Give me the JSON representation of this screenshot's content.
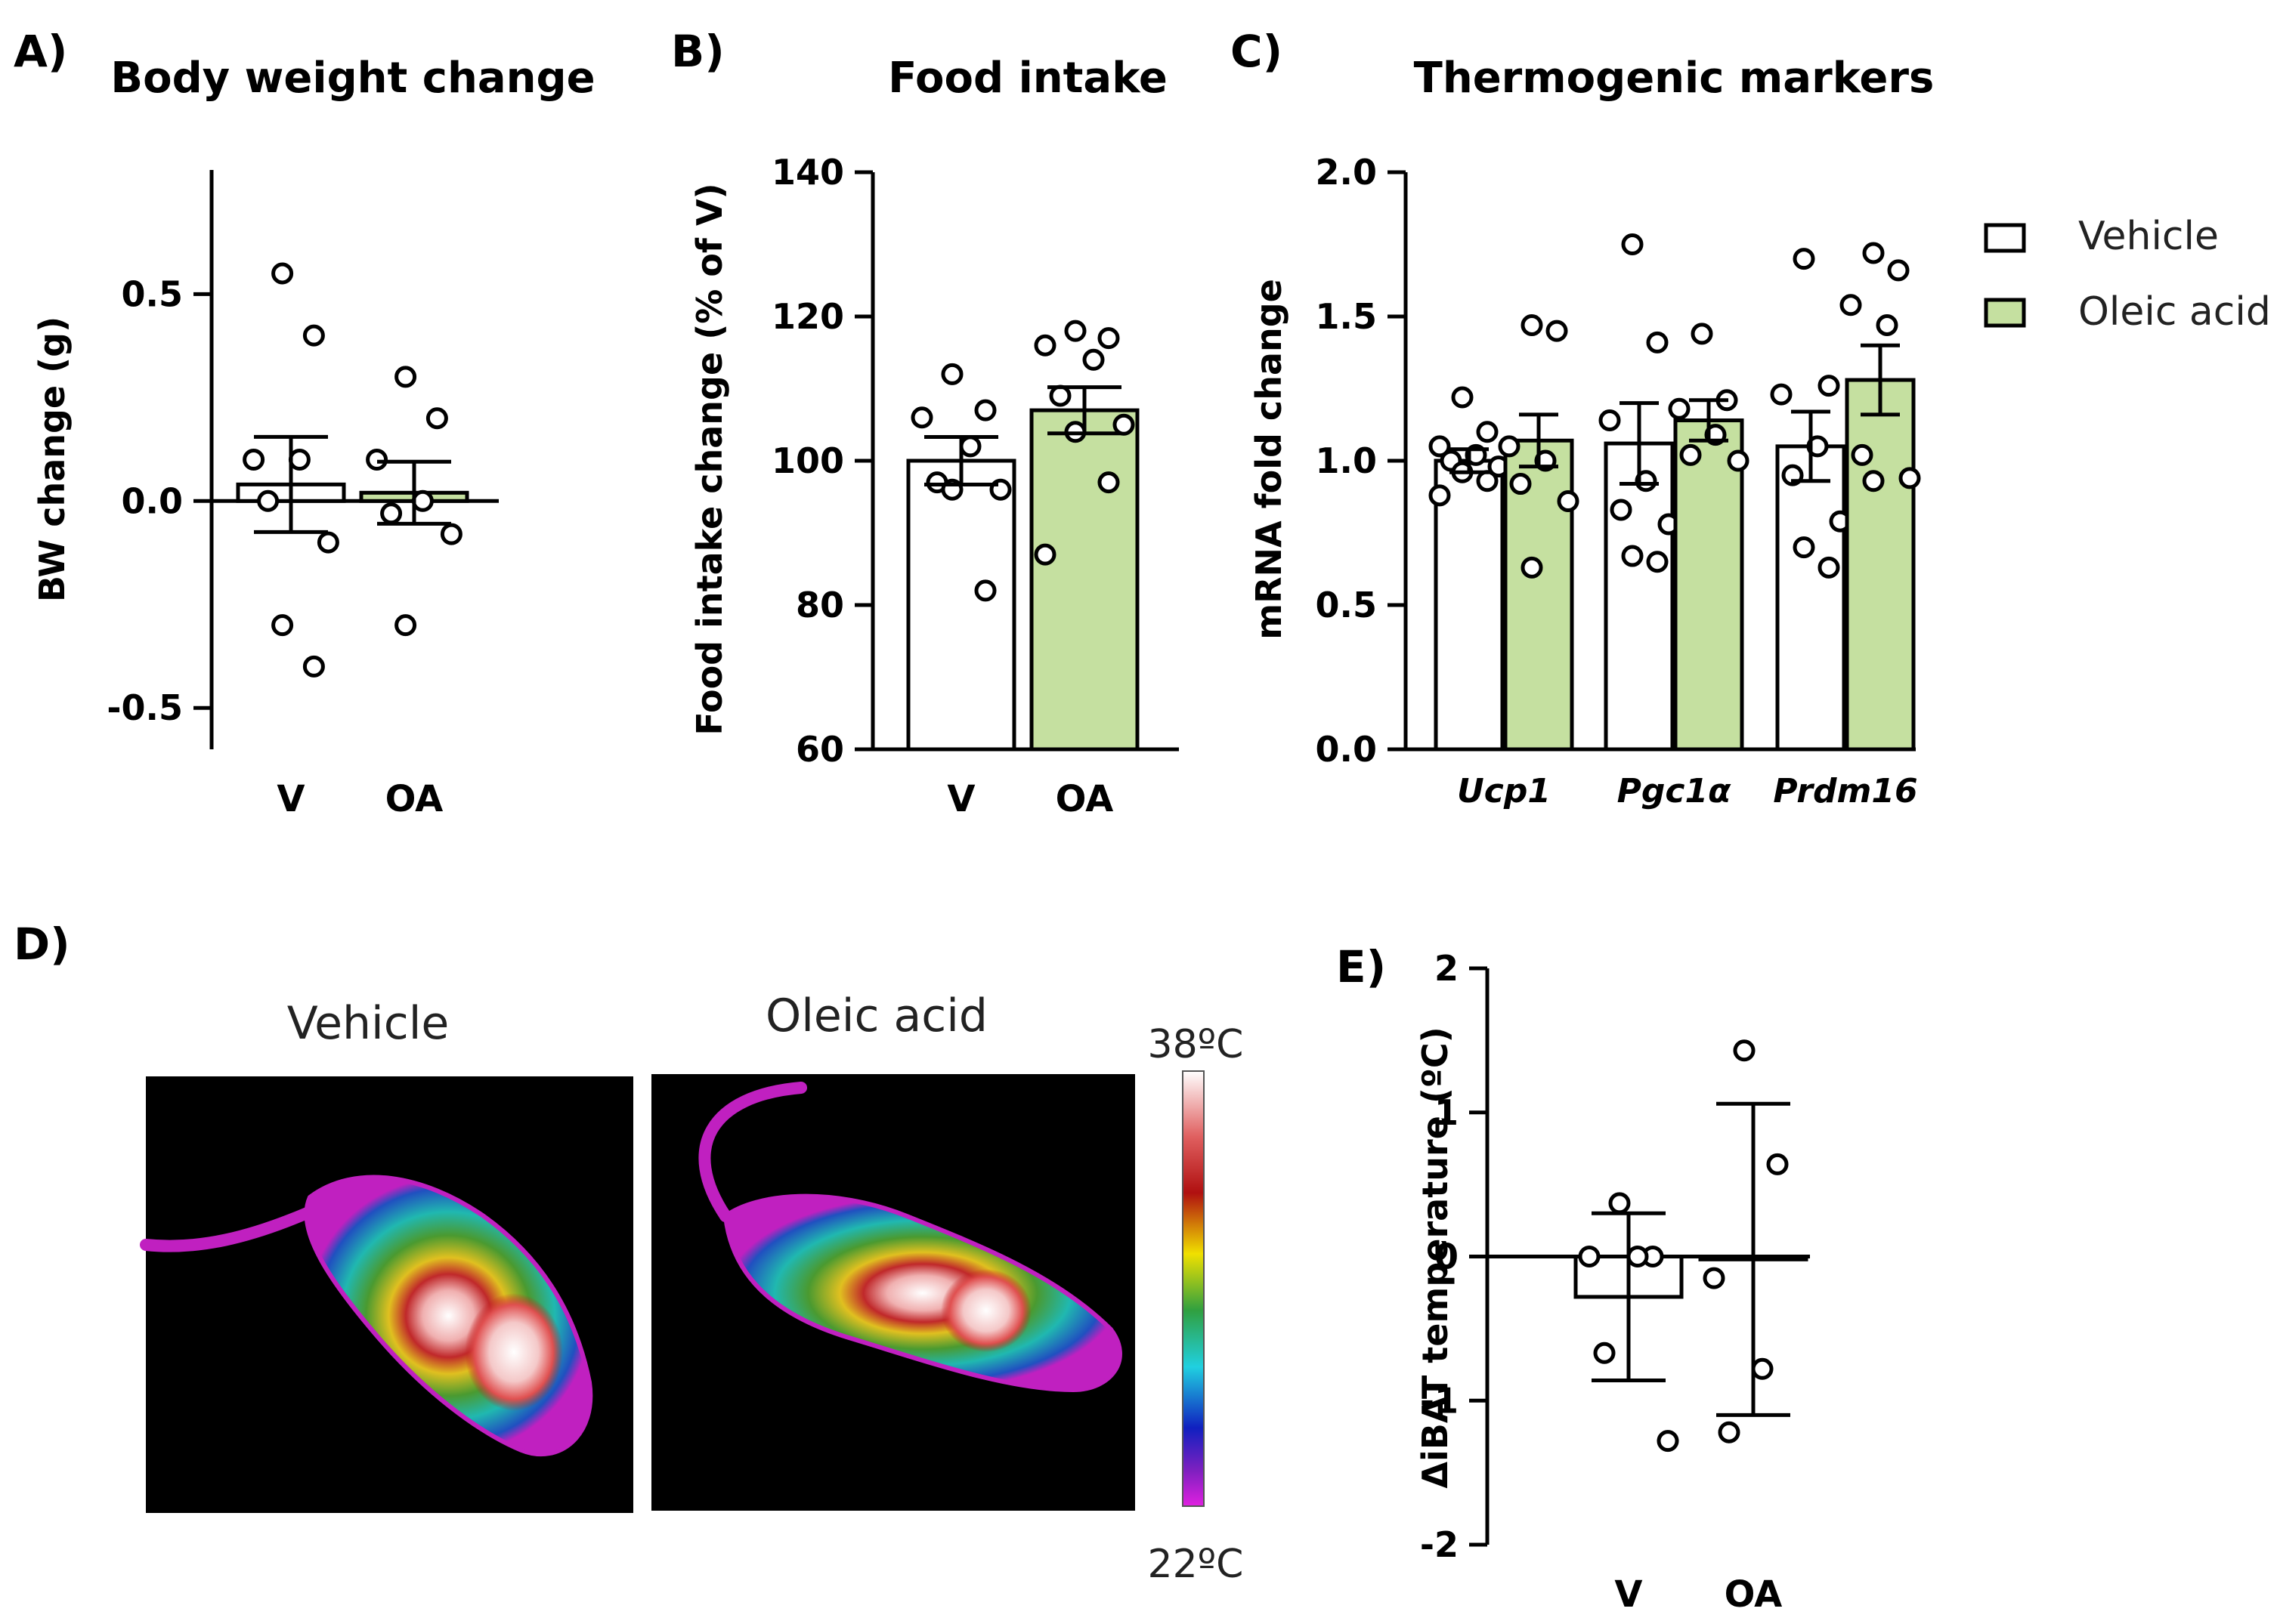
{
  "figure": {
    "panel_letters": {
      "a": "A)",
      "b": "B)",
      "c": "C)",
      "d": "D)",
      "e": "E)"
    },
    "colors": {
      "vehicle": "#ffffff",
      "oleic": "#c5e0a0",
      "axis": "#000000",
      "thermal_bg": "#000000"
    },
    "thermal": {
      "vehicle_label": "Vehicle",
      "oleic_label": "Oleic acid",
      "scale_max": "38ºC",
      "scale_min": "22ºC"
    }
  },
  "chart_data": [
    {
      "id": "A",
      "type": "bar",
      "title": "Body weight change",
      "xlabel": "",
      "ylabel": "BW change (g)",
      "ylim": [
        -0.6,
        0.8
      ],
      "yticks": [
        -0.5,
        0.0,
        0.5
      ],
      "ytick_labels": [
        "-0.5",
        "0.0",
        "0.5"
      ],
      "categories": [
        "V",
        "OA"
      ],
      "bar_fill": [
        "vehicle",
        "oleic"
      ],
      "values": [
        0.04,
        0.02
      ],
      "sem": [
        0.115,
        0.075
      ],
      "points": [
        [
          0.55,
          0.4,
          0.1,
          0.1,
          0.0,
          -0.1,
          -0.3,
          -0.4
        ],
        [
          0.3,
          0.2,
          0.1,
          0.0,
          -0.03,
          -0.08,
          -0.3
        ]
      ]
    },
    {
      "id": "B",
      "type": "bar",
      "title": "Food intake",
      "xlabel": "",
      "ylabel": "Food intake change (% of V)",
      "ylim": [
        60,
        140
      ],
      "yticks": [
        60,
        80,
        100,
        120,
        140
      ],
      "ytick_labels": [
        "60",
        "80",
        "100",
        "120",
        "140"
      ],
      "categories": [
        "V",
        "OA"
      ],
      "bar_fill": [
        "vehicle",
        "oleic"
      ],
      "values": [
        100,
        107
      ],
      "sem": [
        3.3,
        3.2
      ],
      "points": [
        [
          112,
          107,
          106,
          102,
          97,
          96,
          96,
          82
        ],
        [
          118,
          117,
          116,
          114,
          109,
          105,
          104,
          97,
          87
        ]
      ]
    },
    {
      "id": "C",
      "type": "bar",
      "title": "Thermogenic markers",
      "xlabel": "",
      "ylabel": "mRNA fold change",
      "ylim": [
        0.0,
        2.0
      ],
      "yticks": [
        0.0,
        0.5,
        1.0,
        1.5,
        2.0
      ],
      "ytick_labels": [
        "0.0",
        "0.5",
        "1.0",
        "1.5",
        "2.0"
      ],
      "categories": [
        "Ucp1",
        "Pgc1α",
        "Prdm16"
      ],
      "series": [
        {
          "name": "Vehicle",
          "fill": "vehicle",
          "values": [
            1.0,
            1.06,
            1.05
          ],
          "sem": [
            0.04,
            0.14,
            0.12
          ],
          "points": [
            [
              1.22,
              1.1,
              1.05,
              1.02,
              1.0,
              0.98,
              0.96,
              0.93,
              0.88
            ],
            [
              1.75,
              1.41,
              1.14,
              0.93,
              0.83,
              0.78,
              0.67,
              0.65
            ],
            [
              1.7,
              1.26,
              1.23,
              1.05,
              0.95,
              0.79,
              0.7,
              0.63
            ]
          ]
        },
        {
          "name": "Oleic acid",
          "fill": "oleic",
          "values": [
            1.07,
            1.14,
            1.28
          ],
          "sem": [
            0.09,
            0.07,
            0.12
          ],
          "points": [
            [
              1.47,
              1.45,
              1.05,
              1.0,
              0.92,
              0.86,
              0.63
            ],
            [
              1.44,
              1.21,
              1.18,
              1.09,
              1.02,
              1.0
            ],
            [
              1.72,
              1.66,
              1.54,
              1.47,
              1.02,
              0.94,
              0.93
            ]
          ]
        }
      ],
      "legend": {
        "placement": "top-right",
        "entries": [
          "Vehicle",
          "Oleic acid"
        ]
      }
    },
    {
      "id": "E",
      "type": "bar",
      "title": "",
      "xlabel": "",
      "ylabel": "ΔiBAT temperature (ºC)",
      "ylim": [
        -2,
        2
      ],
      "yticks": [
        -2,
        -1,
        0,
        1,
        2
      ],
      "ytick_labels": [
        "-2",
        "-1",
        "0",
        "1",
        "2"
      ],
      "categories": [
        "V",
        "OA"
      ],
      "bar_fill": [
        "vehicle",
        "vehicle"
      ],
      "values": [
        -0.28,
        -0.02
      ],
      "sd": [
        0.58,
        1.08
      ],
      "points": [
        [
          0.37,
          0.0,
          0.0,
          0.0,
          -0.67,
          -1.28
        ],
        [
          1.43,
          0.64,
          -0.15,
          -0.78,
          -1.22
        ]
      ]
    }
  ]
}
